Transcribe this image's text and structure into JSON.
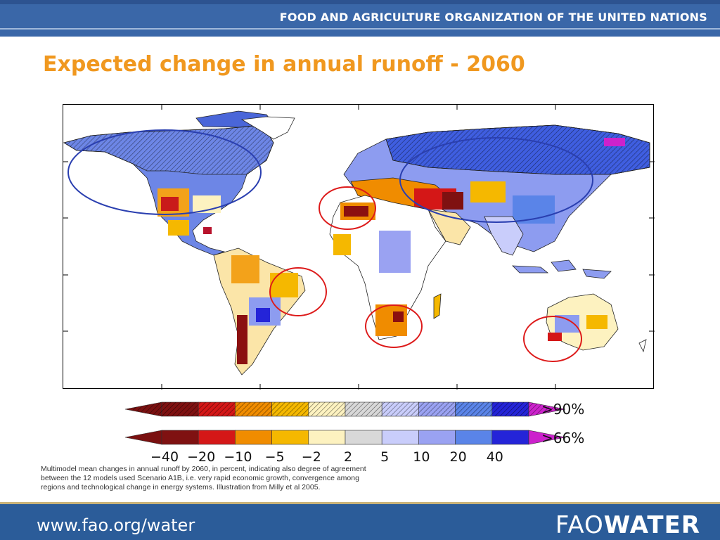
{
  "header": {
    "organization": "FOOD AND AGRICULTURE ORGANIZATION OF THE UNITED NATIONS"
  },
  "slide": {
    "title": "Expected change in annual runoff - 2060"
  },
  "legend": {
    "tick_labels": [
      "−40",
      "−20",
      "−10",
      "−5",
      "−2",
      "2",
      "5",
      "10",
      "20",
      "40"
    ],
    "colors": [
      "#7f1111",
      "#d41717",
      "#f08c00",
      "#f5b800",
      "#fdf2c0",
      "#d8d8d8",
      "#c9cdfb",
      "#9aa2f2",
      "#5a84e8",
      "#2424d8"
    ],
    "low_color": "#7a1010",
    "high_color": "#cc22cc",
    "rows": [
      {
        "label": ">90%",
        "hatched": true
      },
      {
        "label": ">66%",
        "hatched": false
      }
    ]
  },
  "caption": "Multimodel mean changes in annual runoff by 2060, in percent, indicating also degree of agreement between the 12 models used Scenario A1B, i.e. very rapid economic growth, convergence among regions and technological change in energy systems. Illustration from Milly et al 2005.",
  "footer": {
    "url": "www.fao.org/water",
    "brand_light": "FAO",
    "brand_bold": "WATER"
  },
  "colors": {
    "title": "#f0981f",
    "bar": "#3a67a8",
    "footer_bar": "#2b5c99",
    "wet_highlight": "#2a3fb0",
    "dry_highlight": "#dd1a1a"
  }
}
